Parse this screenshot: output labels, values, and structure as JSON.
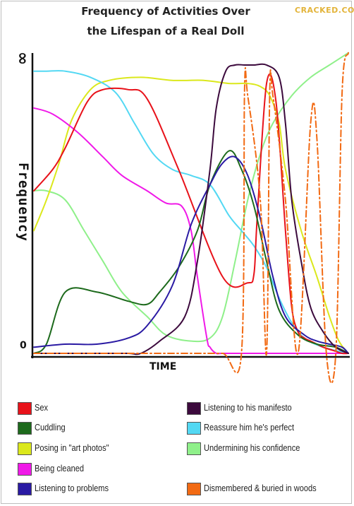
{
  "watermark": "CRACKED.COM",
  "chart_data": {
    "type": "line",
    "title_line1": "Frequency of Activities Over",
    "title_line2": "the Lifespan of a Real Doll",
    "xlabel": "TIME",
    "ylabel": "Frequency",
    "y_ticks": [
      "∞",
      "0"
    ],
    "grid": false,
    "legend_position": "bottom",
    "series": [
      {
        "name": "Sex",
        "color": "#e8121a",
        "style": "solid",
        "x": [
          0,
          0.06,
          0.1,
          0.17,
          0.22,
          0.3,
          0.36,
          0.46,
          0.6,
          0.68,
          0.7,
          0.71,
          0.74,
          0.77,
          0.8,
          0.82,
          0.84,
          0.86,
          0.88,
          0.9,
          0.92,
          0.95,
          0.98,
          1.0
        ],
        "y": [
          0.53,
          0.6,
          0.67,
          0.82,
          0.86,
          0.86,
          0.83,
          0.6,
          0.25,
          0.23,
          0.26,
          0.44,
          0.88,
          0.82,
          0.4,
          0.15,
          0.07,
          0.05,
          0.04,
          0.03,
          0.02,
          0.01,
          0.0,
          0.0
        ]
      },
      {
        "name": "Cuddling",
        "color": "#1d6a1c",
        "style": "solid",
        "x": [
          0,
          0.04,
          0.1,
          0.2,
          0.3,
          0.36,
          0.4,
          0.46,
          0.52,
          0.56,
          0.62,
          0.66,
          0.7,
          0.74,
          0.78,
          0.84,
          0.9,
          0.96,
          1.0
        ],
        "y": [
          0.0,
          0.03,
          0.2,
          0.2,
          0.17,
          0.16,
          0.2,
          0.28,
          0.4,
          0.55,
          0.66,
          0.6,
          0.48,
          0.3,
          0.14,
          0.06,
          0.03,
          0.02,
          0.0
        ]
      },
      {
        "name": "Posing in \"art photos\"",
        "color": "#dbe81c",
        "style": "solid",
        "x": [
          0,
          0.04,
          0.08,
          0.12,
          0.18,
          0.24,
          0.34,
          0.44,
          0.54,
          0.62,
          0.68,
          0.72,
          0.75,
          0.78,
          0.8,
          0.85,
          0.9,
          0.94,
          0.97,
          1.0
        ],
        "y": [
          0.4,
          0.5,
          0.62,
          0.76,
          0.86,
          0.89,
          0.9,
          0.89,
          0.89,
          0.88,
          0.88,
          0.87,
          0.84,
          0.75,
          0.6,
          0.4,
          0.25,
          0.12,
          0.04,
          0.0
        ]
      },
      {
        "name": "Being cleaned",
        "color": "#f019e8",
        "style": "solid",
        "x": [
          0,
          0.06,
          0.14,
          0.22,
          0.28,
          0.36,
          0.42,
          0.47,
          0.5,
          0.52,
          0.55,
          0.56,
          0.58,
          0.6,
          0.7,
          0.8,
          1.0
        ],
        "y": [
          0.8,
          0.78,
          0.72,
          0.64,
          0.58,
          0.53,
          0.49,
          0.48,
          0.4,
          0.25,
          0.05,
          0.02,
          0.0,
          0.0,
          0.0,
          0.0,
          0.0
        ]
      },
      {
        "name": "Listening to problems",
        "color": "#2a1aa3",
        "style": "solid",
        "x": [
          0,
          0.1,
          0.2,
          0.3,
          0.36,
          0.44,
          0.5,
          0.56,
          0.6,
          0.64,
          0.68,
          0.72,
          0.76,
          0.8,
          0.86,
          0.9,
          0.94,
          0.98,
          1.0
        ],
        "y": [
          0.02,
          0.03,
          0.03,
          0.05,
          0.09,
          0.22,
          0.42,
          0.55,
          0.62,
          0.64,
          0.58,
          0.44,
          0.25,
          0.12,
          0.06,
          0.04,
          0.03,
          0.02,
          0.0
        ]
      },
      {
        "name": "Listening to his manifesto",
        "color": "#3c0a3d",
        "style": "solid",
        "x": [
          0,
          0.1,
          0.2,
          0.3,
          0.34,
          0.4,
          0.48,
          0.52,
          0.56,
          0.58,
          0.61,
          0.64,
          0.67,
          0.7,
          0.74,
          0.78,
          0.8,
          0.82,
          0.85,
          0.88,
          0.92,
          0.96,
          1.0
        ],
        "y": [
          0.0,
          0.0,
          0.0,
          0.0,
          0.0,
          0.04,
          0.12,
          0.3,
          0.6,
          0.8,
          0.92,
          0.94,
          0.94,
          0.94,
          0.94,
          0.9,
          0.75,
          0.5,
          0.3,
          0.15,
          0.07,
          0.02,
          0.0
        ]
      },
      {
        "name": "Reassure him he's perfect",
        "color": "#53d8f3",
        "style": "solid",
        "x": [
          0,
          0.04,
          0.1,
          0.18,
          0.26,
          0.32,
          0.38,
          0.44,
          0.5,
          0.56,
          0.62,
          0.66,
          0.7,
          0.74,
          0.78,
          0.82,
          0.86,
          0.92,
          1.0
        ],
        "y": [
          0.92,
          0.92,
          0.92,
          0.9,
          0.85,
          0.75,
          0.65,
          0.6,
          0.58,
          0.55,
          0.45,
          0.4,
          0.35,
          0.28,
          0.18,
          0.1,
          0.05,
          0.02,
          0.0
        ]
      },
      {
        "name": "Undermining his confidence",
        "color": "#8ff08a",
        "style": "solid",
        "x": [
          0,
          0.04,
          0.1,
          0.16,
          0.22,
          0.28,
          0.36,
          0.42,
          0.5,
          0.56,
          0.6,
          0.64,
          0.68,
          0.72,
          0.76,
          0.82,
          0.88,
          0.94,
          1.0
        ],
        "y": [
          0.53,
          0.53,
          0.5,
          0.4,
          0.3,
          0.2,
          0.12,
          0.06,
          0.04,
          0.05,
          0.12,
          0.3,
          0.5,
          0.65,
          0.75,
          0.84,
          0.9,
          0.94,
          0.98
        ]
      },
      {
        "name": "Dismembered & buried in woods",
        "color": "#f26a13",
        "style": "dashed",
        "x": [
          0,
          0.1,
          0.2,
          0.3,
          0.4,
          0.5,
          0.6,
          0.66,
          0.67,
          0.68,
          0.72,
          0.74,
          0.75,
          0.76,
          0.8,
          0.84,
          0.88,
          0.9,
          0.93,
          0.96,
          0.98,
          1.0
        ],
        "y": [
          0.0,
          0.0,
          0.0,
          0.0,
          0.0,
          0.0,
          0.0,
          0.0,
          0.86,
          0.84,
          0.5,
          0.0,
          0.85,
          0.84,
          0.5,
          0.0,
          0.75,
          0.7,
          0.0,
          0.0,
          0.85,
          0.98
        ]
      }
    ]
  }
}
